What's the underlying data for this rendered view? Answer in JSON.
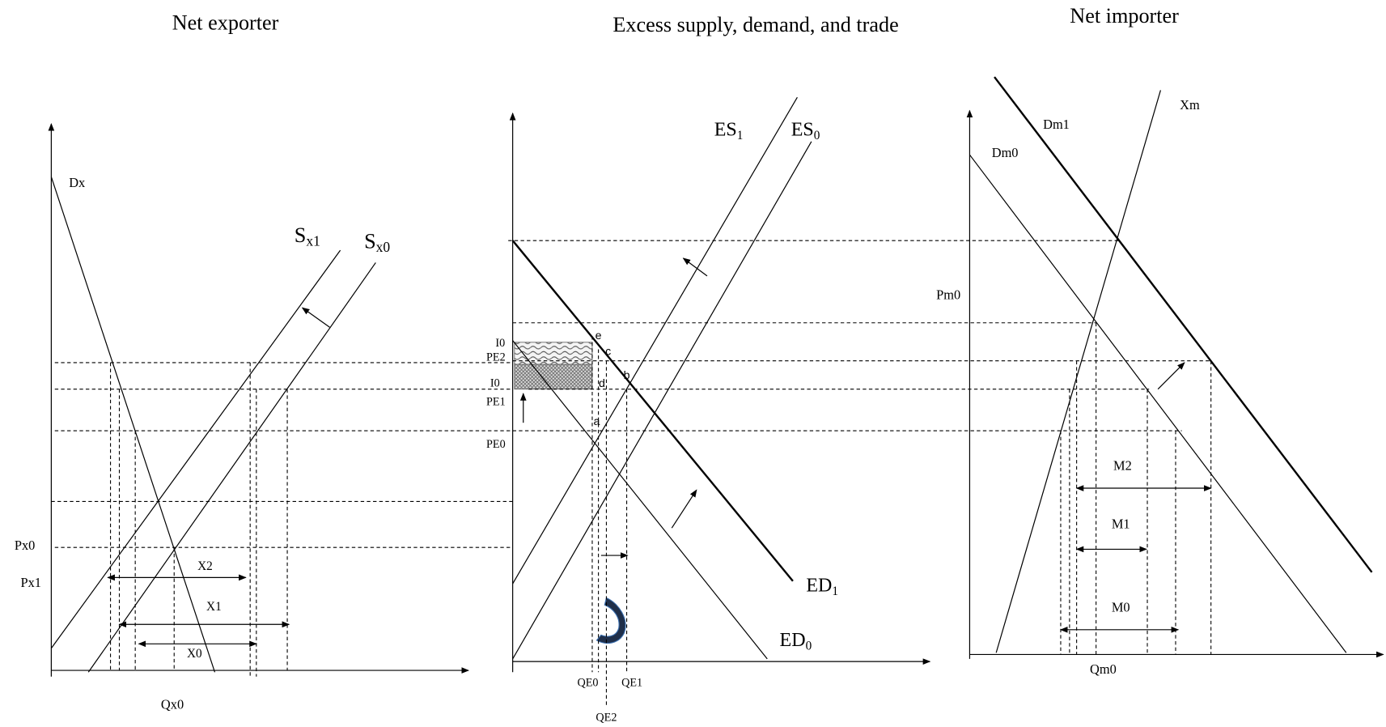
{
  "left": {
    "title": "Net exporter",
    "dx": "Dx",
    "sx1": {
      "base": "S",
      "sub": "x1"
    },
    "sx0": {
      "base": "S",
      "sub": "x0"
    },
    "x2": "X2",
    "x1": "X1",
    "x0": "X0",
    "px0": "Px0",
    "px1": "Px1",
    "qx0": "Qx0"
  },
  "middle": {
    "title": "Excess supply, demand, and trade",
    "es1": {
      "base": "ES",
      "sub": "1"
    },
    "es0": {
      "base": "ES",
      "sub": "0"
    },
    "ed1": {
      "base": "ED",
      "sub": "1"
    },
    "ed0": {
      "base": "ED",
      "sub": "0"
    },
    "i0_top": "I0",
    "pe2": "PE2",
    "i0_bottom": "I0",
    "pe1": "PE1",
    "pe0": "PE0",
    "e": "e",
    "c": "c",
    "d": "d",
    "b": "b",
    "a": "a",
    "qe0": "QE0",
    "qe1": "QE1",
    "qe2": "QE2"
  },
  "right": {
    "title": "Net importer",
    "dm1": "Dm1",
    "dm0": "Dm0",
    "xm": "Xm",
    "pm0": "Pm0",
    "m2": "M2",
    "m1": "M1",
    "m0": "M0",
    "qm0": "Qm0"
  }
}
